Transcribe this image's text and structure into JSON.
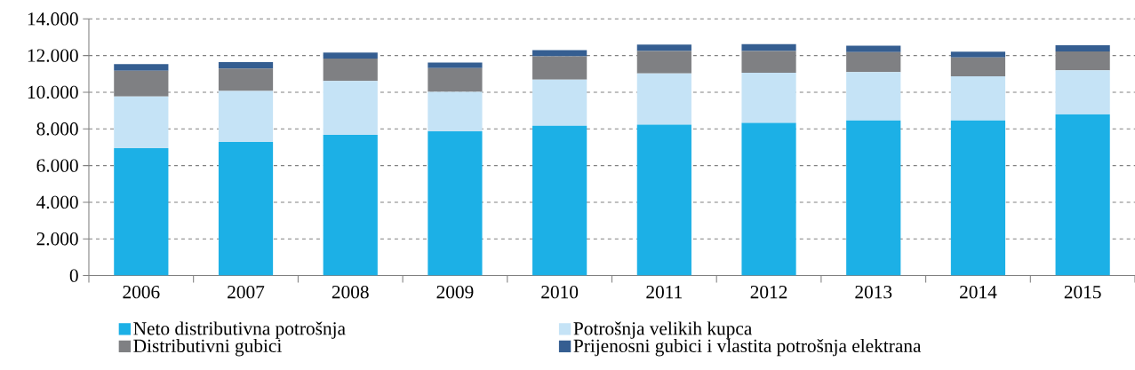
{
  "chart_data": {
    "type": "bar",
    "stacked": true,
    "categories": [
      "2006",
      "2007",
      "2008",
      "2009",
      "2010",
      "2011",
      "2012",
      "2013",
      "2014",
      "2015"
    ],
    "series": [
      {
        "name": "Neto distributivna potrošnja",
        "color": "#1cb0e6",
        "values": [
          6950,
          7290,
          7680,
          7870,
          8170,
          8230,
          8330,
          8460,
          8460,
          8800
        ]
      },
      {
        "name": "Potrošnja velikih kupca",
        "color": "#c5e3f6",
        "values": [
          2820,
          2780,
          2930,
          2150,
          2520,
          2800,
          2730,
          2640,
          2410,
          2400
        ]
      },
      {
        "name": "Distributivni gubici",
        "color": "#7f8083",
        "values": [
          1400,
          1220,
          1230,
          1300,
          1270,
          1220,
          1190,
          1090,
          1030,
          1030
        ]
      },
      {
        "name": "Prijenosni gubici i vlastita potrošnja elektrana",
        "color": "#355e91",
        "values": [
          360,
          350,
          330,
          300,
          340,
          350,
          370,
          350,
          310,
          330
        ]
      }
    ],
    "ylim": [
      0,
      14000
    ],
    "yticks": [
      {
        "value": 0,
        "label": "0"
      },
      {
        "value": 2000,
        "label": "2.000"
      },
      {
        "value": 4000,
        "label": "4.000"
      },
      {
        "value": 6000,
        "label": "6.000"
      },
      {
        "value": 8000,
        "label": "8.000"
      },
      {
        "value": 10000,
        "label": "10.000"
      },
      {
        "value": 12000,
        "label": "12.000"
      },
      {
        "value": 14000,
        "label": "14.000"
      }
    ],
    "grid": "y",
    "legend": "bottom"
  }
}
